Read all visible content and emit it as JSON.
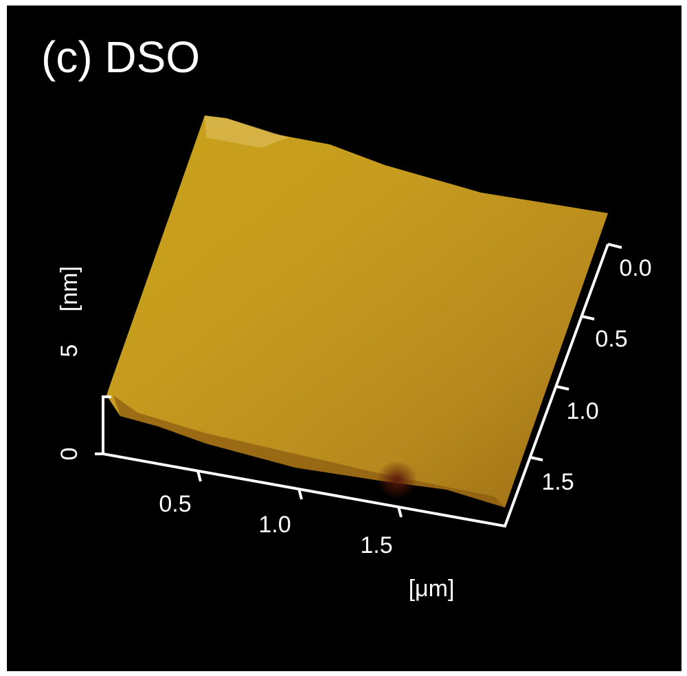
{
  "title": "(c) DSO",
  "z_axis": {
    "label": "[nm]",
    "ticks": [
      "0",
      "5"
    ]
  },
  "x_axis": {
    "label": "[μm]",
    "ticks": [
      "0.5",
      "1.0",
      "1.5"
    ]
  },
  "y_axis": {
    "ticks": [
      "0.0",
      "0.5",
      "1.0",
      "1.5"
    ]
  }
}
